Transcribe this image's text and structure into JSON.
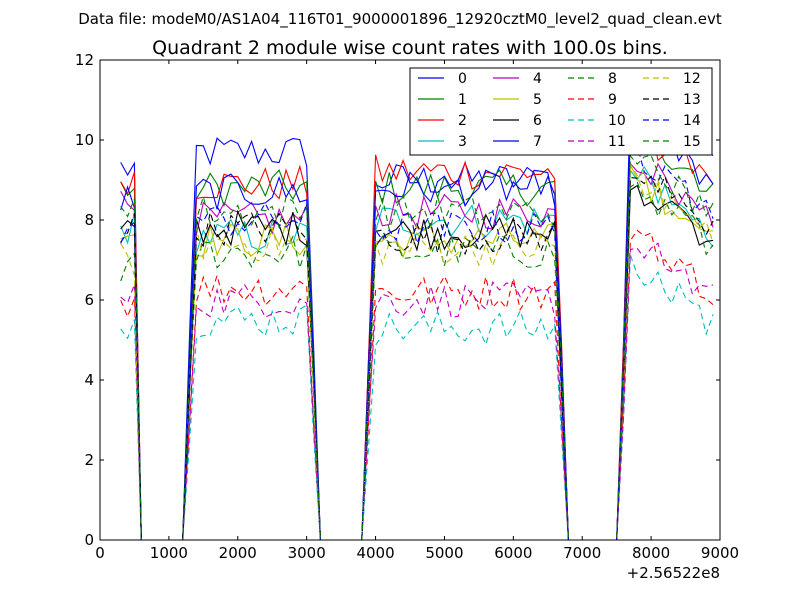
{
  "chart_data": {
    "type": "line",
    "suptitle": "Data file: modeM0/AS1A04_116T01_9000001896_12920cztM0_level2_quad_clean.evt",
    "title": "Quadrant 2 module wise count rates with 100.0s bins.",
    "xlabel": "",
    "ylabel": "",
    "x_offset_label": "+2.56522e8",
    "xlim": [
      0,
      9000
    ],
    "ylim": [
      0,
      12
    ],
    "xticks": [
      0,
      1000,
      2000,
      3000,
      4000,
      5000,
      6000,
      7000,
      8000,
      9000
    ],
    "xtick_labels": [
      "0",
      "1000",
      "2000",
      "3000",
      "4000",
      "5000",
      "6000",
      "7000",
      "8000",
      "9000"
    ],
    "yticks": [
      0,
      2,
      4,
      6,
      8,
      10,
      12
    ],
    "ytick_labels": [
      "0",
      "2",
      "4",
      "6",
      "8",
      "10",
      "12"
    ],
    "legend": {
      "placement": "top-right",
      "columns": 4
    },
    "segments": [
      {
        "start": 300,
        "end": 500
      },
      {
        "start": 1400,
        "end": 3000
      },
      {
        "start": 4000,
        "end": 6600
      },
      {
        "start": 7700,
        "end": 8900
      }
    ],
    "gaps": [
      {
        "start": 600,
        "end": 1200
      },
      {
        "start": 3200,
        "end": 3800
      },
      {
        "start": 6800,
        "end": 7500
      }
    ],
    "series": [
      {
        "name": "0",
        "color": "#0000ff",
        "dash": "solid",
        "level": 9.4,
        "seg_levels": [
          9.3,
          9.7,
          9.0,
          10.2
        ]
      },
      {
        "name": "1",
        "color": "#008000",
        "dash": "solid",
        "level": 8.8,
        "seg_levels": [
          8.8,
          8.8,
          8.8,
          9.2
        ]
      },
      {
        "name": "2",
        "color": "#ff0000",
        "dash": "solid",
        "level": 8.9,
        "seg_levels": [
          9.1,
          8.9,
          9.2,
          9.4
        ]
      },
      {
        "name": "3",
        "color": "#00bfbf",
        "dash": "solid",
        "level": 8.0,
        "seg_levels": [
          7.8,
          7.6,
          8.0,
          8.2
        ]
      },
      {
        "name": "4",
        "color": "#bf00bf",
        "dash": "solid",
        "level": 8.2,
        "seg_levels": [
          8.4,
          8.0,
          8.2,
          8.6
        ]
      },
      {
        "name": "5",
        "color": "#bfbf00",
        "dash": "solid",
        "level": 7.6,
        "seg_levels": [
          7.7,
          7.5,
          7.5,
          8.2
        ]
      },
      {
        "name": "6",
        "color": "#000000",
        "dash": "solid",
        "level": 7.6,
        "seg_levels": [
          7.6,
          7.8,
          7.7,
          8.0
        ]
      },
      {
        "name": "7",
        "color": "#0000ff",
        "dash": "solid",
        "level": 8.7,
        "seg_levels": [
          8.5,
          8.7,
          8.8,
          9.5
        ]
      },
      {
        "name": "8",
        "color": "#008000",
        "dash": "dashed",
        "level": 7.2,
        "seg_levels": [
          6.8,
          7.2,
          7.2,
          8.0
        ]
      },
      {
        "name": "9",
        "color": "#ff0000",
        "dash": "dashed",
        "level": 6.3,
        "seg_levels": [
          6.0,
          6.3,
          6.2,
          6.8
        ]
      },
      {
        "name": "10",
        "color": "#00bfbf",
        "dash": "dashed",
        "level": 5.4,
        "seg_levels": [
          5.3,
          5.5,
          5.3,
          6.0
        ]
      },
      {
        "name": "11",
        "color": "#bf00bf",
        "dash": "dashed",
        "level": 6.0,
        "seg_levels": [
          6.0,
          6.0,
          6.0,
          6.6
        ]
      },
      {
        "name": "12",
        "color": "#bfbf00",
        "dash": "dashed",
        "level": 7.4,
        "seg_levels": [
          7.0,
          7.4,
          7.3,
          8.2
        ]
      },
      {
        "name": "13",
        "color": "#000000",
        "dash": "dashed",
        "level": 7.8,
        "seg_levels": [
          7.8,
          7.8,
          7.6,
          8.4
        ]
      },
      {
        "name": "14",
        "color": "#0000ff",
        "dash": "dashed",
        "level": 8.0,
        "seg_levels": [
          7.6,
          8.0,
          7.8,
          8.8
        ]
      },
      {
        "name": "15",
        "color": "#008000",
        "dash": "dashed",
        "level": 8.2,
        "seg_levels": [
          8.5,
          8.2,
          8.2,
          8.8
        ]
      }
    ]
  }
}
